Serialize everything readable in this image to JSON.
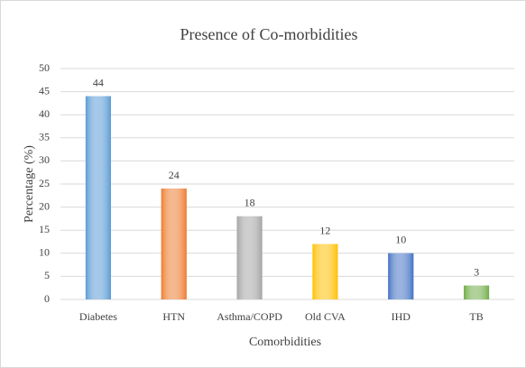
{
  "chart_data": {
    "type": "bar",
    "title": "Presence of Co-morbidities",
    "x_label": "Comorbidities",
    "y_label": "Percentage (%)",
    "categories": [
      "Diabetes",
      "HTN",
      "Asthma/COPD",
      "Old CVA",
      "IHD",
      "TB"
    ],
    "values": [
      44,
      24,
      18,
      12,
      10,
      3
    ],
    "colors": [
      "#5b9bd5",
      "#ed7d31",
      "#a5a5a5",
      "#ffc000",
      "#4472c4",
      "#70ad47"
    ],
    "ylim": [
      0,
      50
    ],
    "yticks": [
      0,
      5,
      10,
      15,
      20,
      25,
      30,
      35,
      40,
      45,
      50
    ],
    "grid": true
  }
}
